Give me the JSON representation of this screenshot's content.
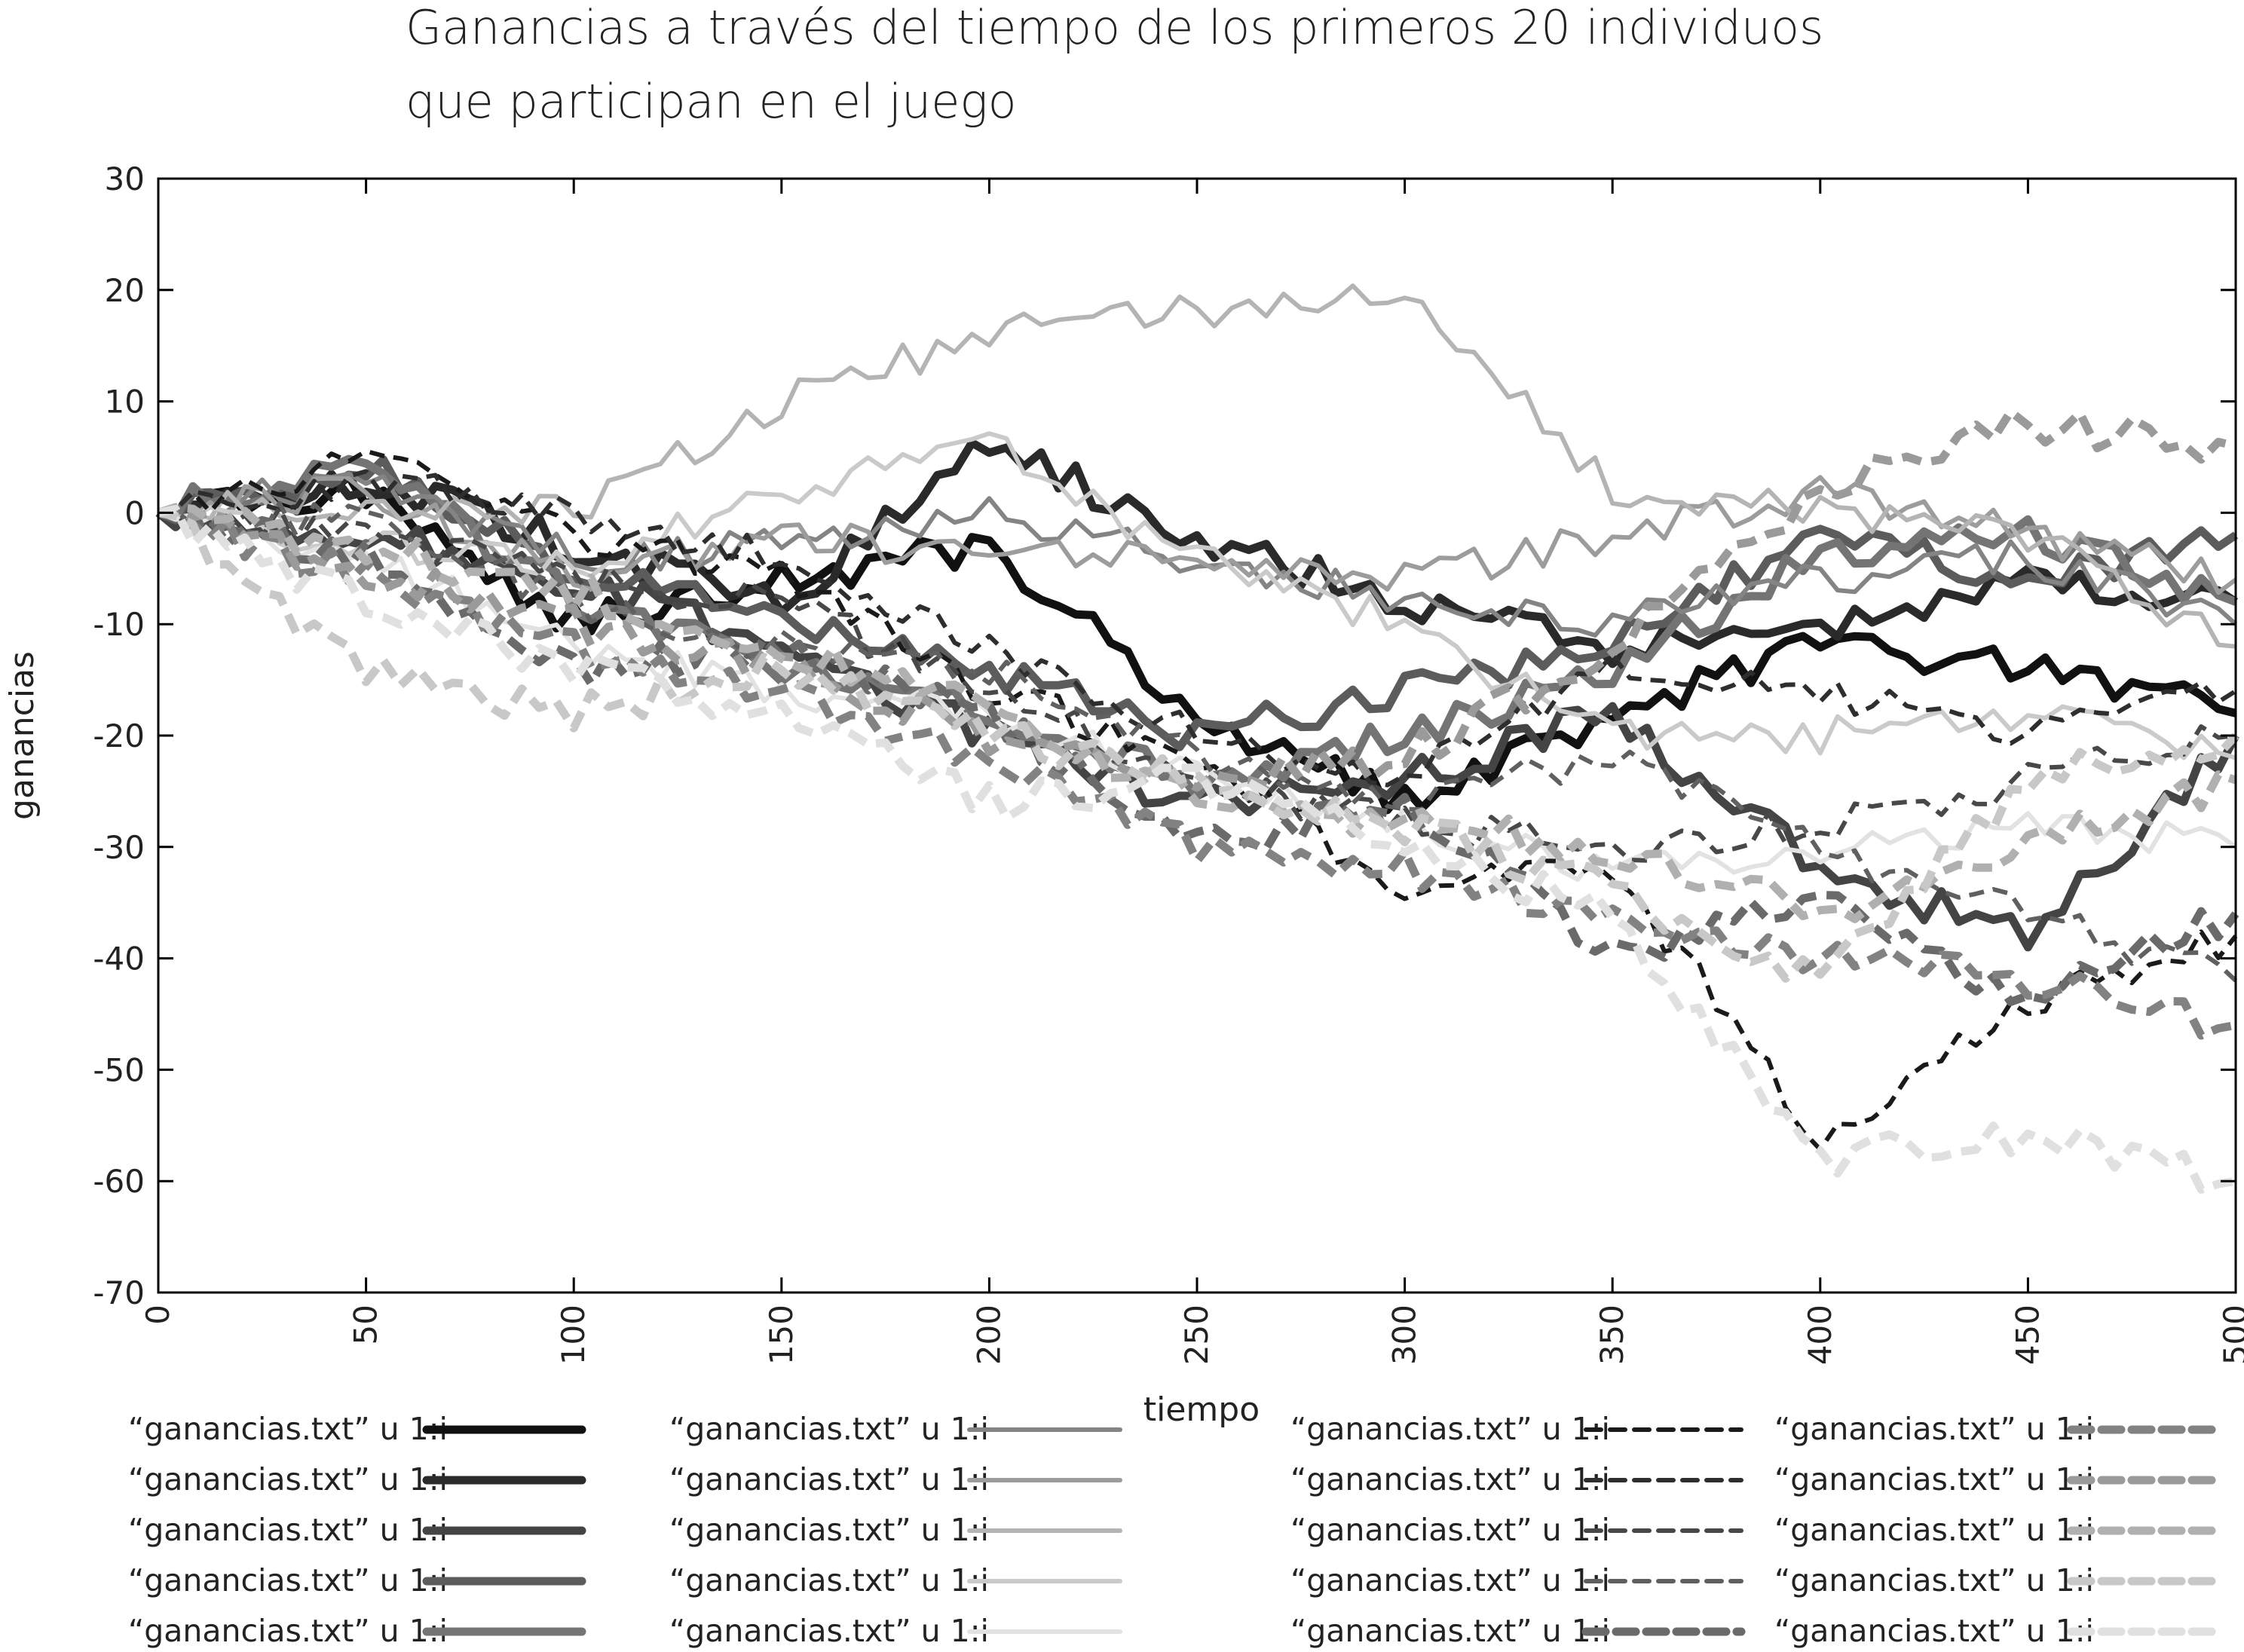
{
  "chart_data": {
    "type": "line",
    "title_lines": [
      "Ganancias a través del tiempo de los primeros 20 individuos",
      "que participan en el juego"
    ],
    "xlabel": "tiempo",
    "ylabel": "ganancias",
    "xlim": [
      0,
      500
    ],
    "ylim": [
      -70,
      30
    ],
    "x_ticks": [
      0,
      50,
      100,
      150,
      200,
      250,
      300,
      350,
      400,
      450,
      500
    ],
    "y_ticks": [
      30,
      20,
      10,
      0,
      -10,
      -20,
      -30,
      -40,
      -50,
      -60,
      -70
    ],
    "grid": false,
    "legend_position": "bottom",
    "x": [
      0,
      50,
      100,
      150,
      200,
      250,
      300,
      350,
      400,
      450,
      500
    ],
    "series": [
      {
        "name": "“ganancias.txt” u 1:i",
        "color": "#111111",
        "dash": "solid",
        "width": "thick",
        "values": [
          0,
          2,
          -10,
          -6,
          -3,
          -18,
          -26,
          -18,
          -12,
          -14,
          -18
        ]
      },
      {
        "name": "“ganancias.txt” u 1:i",
        "color": "#2a2a2a",
        "dash": "solid",
        "width": "thick",
        "values": [
          0,
          3,
          -3,
          -8,
          6,
          -2,
          -8,
          -12,
          -10,
          -6,
          -8
        ]
      },
      {
        "name": "“ganancias.txt” u 1:i",
        "color": "#444444",
        "dash": "solid",
        "width": "thick",
        "values": [
          0,
          -2,
          -6,
          -12,
          -20,
          -26,
          -24,
          -18,
          -32,
          -38,
          -20
        ]
      },
      {
        "name": "“ganancias.txt” u 1:i",
        "color": "#5c5c5c",
        "dash": "solid",
        "width": "thick",
        "values": [
          0,
          4,
          -5,
          -10,
          -14,
          -20,
          -16,
          -12,
          -2,
          -6,
          -2
        ]
      },
      {
        "name": "“ganancias.txt” u 1:i",
        "color": "#747474",
        "dash": "solid",
        "width": "thick",
        "values": [
          0,
          5,
          -8,
          -14,
          -18,
          -24,
          -20,
          -14,
          -4,
          -2,
          -8
        ]
      },
      {
        "name": "“ganancias.txt” u 1:i",
        "color": "#848484",
        "dash": "solid",
        "width": "medium",
        "values": [
          0,
          3,
          -4,
          -3,
          0,
          -4,
          -8,
          -10,
          -6,
          -4,
          -10
        ]
      },
      {
        "name": "“ganancias.txt” u 1:i",
        "color": "#9c9c9c",
        "dash": "solid",
        "width": "medium",
        "values": [
          0,
          2,
          -6,
          -2,
          -4,
          -4,
          -6,
          -2,
          2,
          -2,
          -6
        ]
      },
      {
        "name": "“ganancias.txt” u 1:i",
        "color": "#b4b4b4",
        "dash": "solid",
        "width": "medium",
        "values": [
          0,
          1,
          0,
          10,
          16,
          18,
          20,
          2,
          0,
          -2,
          -12
        ]
      },
      {
        "name": "“ganancias.txt” u 1:i",
        "color": "#cacaca",
        "dash": "solid",
        "width": "medium",
        "values": [
          0,
          -3,
          -5,
          2,
          6,
          -4,
          -10,
          -20,
          -20,
          -18,
          -22
        ]
      },
      {
        "name": "“ganancias.txt” u 1:i",
        "color": "#e2e2e2",
        "dash": "solid",
        "width": "medium",
        "values": [
          0,
          -4,
          -12,
          -16,
          -18,
          -24,
          -28,
          -32,
          -30,
          -28,
          -30
        ]
      },
      {
        "name": "“ganancias.txt” u 1:i",
        "color": "#1a1a1a",
        "dash": "dashed",
        "width": "medium",
        "values": [
          0,
          5,
          -2,
          -6,
          -16,
          -22,
          -34,
          -32,
          -56,
          -44,
          -38
        ]
      },
      {
        "name": "“ganancias.txt” u 1:i",
        "color": "#2e2e2e",
        "dash": "dashed",
        "width": "medium",
        "values": [
          0,
          3,
          0,
          -4,
          -12,
          -20,
          -24,
          -14,
          -16,
          -20,
          -16
        ]
      },
      {
        "name": "“ganancias.txt” u 1:i",
        "color": "#484848",
        "dash": "dashed",
        "width": "medium",
        "values": [
          0,
          -2,
          -6,
          -8,
          -16,
          -24,
          -28,
          -30,
          -28,
          -24,
          -20
        ]
      },
      {
        "name": "“ganancias.txt” u 1:i",
        "color": "#606060",
        "dash": "dashed",
        "width": "medium",
        "values": [
          0,
          -1,
          -8,
          -12,
          -14,
          -22,
          -26,
          -22,
          -30,
          -36,
          -42
        ]
      },
      {
        "name": "“ganancias.txt” u 1:i",
        "color": "#6a6a6a",
        "dash": "dashed",
        "width": "thick",
        "values": [
          0,
          -4,
          -14,
          -12,
          -18,
          -30,
          -26,
          -40,
          -34,
          -44,
          -36
        ]
      },
      {
        "name": "“ganancias.txt” u 1:i",
        "color": "#828282",
        "dash": "dashed",
        "width": "thick",
        "values": [
          0,
          -6,
          -12,
          -16,
          -22,
          -30,
          -32,
          -36,
          -40,
          -42,
          -46
        ]
      },
      {
        "name": "“ganancias.txt” u 1:i",
        "color": "#9a9a9a",
        "dash": "dashed",
        "width": "thick",
        "values": [
          0,
          -5,
          -10,
          -14,
          -20,
          -24,
          -22,
          -12,
          2,
          8,
          6
        ]
      },
      {
        "name": "“ganancias.txt” u 1:i",
        "color": "#b0b0b0",
        "dash": "dashed",
        "width": "thick",
        "values": [
          0,
          -3,
          -7,
          -12,
          -18,
          -26,
          -28,
          -30,
          -36,
          -30,
          -24
        ]
      },
      {
        "name": "“ganancias.txt” u 1:i",
        "color": "#c8c8c8",
        "dash": "dashed",
        "width": "thick",
        "values": [
          0,
          -14,
          -18,
          -14,
          -20,
          -24,
          -28,
          -34,
          -42,
          -24,
          -20
        ]
      },
      {
        "name": "“ganancias.txt” u 1:i",
        "color": "#e0e0e0",
        "dash": "dashed",
        "width": "thick",
        "values": [
          0,
          -8,
          -14,
          -18,
          -26,
          -24,
          -30,
          -36,
          -58,
          -56,
          -60
        ]
      }
    ]
  }
}
